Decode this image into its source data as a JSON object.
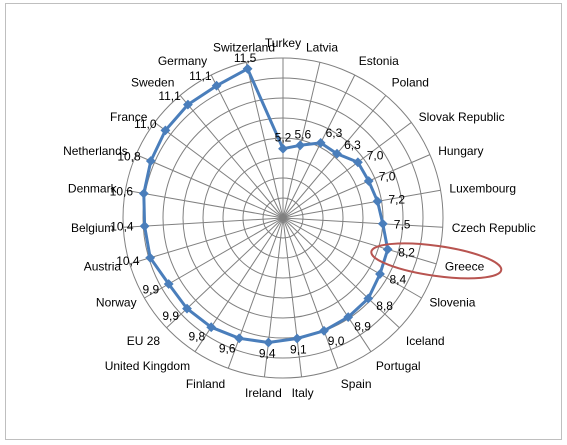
{
  "chart_data": {
    "type": "radar",
    "categories": [
      "Turkey",
      "Latvia",
      "Estonia",
      "Poland",
      "Slovak Republic",
      "Hungary",
      "Luxembourg",
      "Czech Republic",
      "Greece",
      "Slovenia",
      "Iceland",
      "Portugal",
      "Spain",
      "Italy",
      "Ireland",
      "Finland",
      "United Kingdom",
      "EU 28",
      "Norway",
      "Austria",
      "Belgium",
      "Denmark",
      "Netherlands",
      "France",
      "Sweden",
      "Germany",
      "Switzerland"
    ],
    "values": [
      5.2,
      5.6,
      6.3,
      6.3,
      7.0,
      7.0,
      7.2,
      7.5,
      8.2,
      8.4,
      8.8,
      8.9,
      9.0,
      9.1,
      9.4,
      9.6,
      9.8,
      9.9,
      9.9,
      10.4,
      10.4,
      10.6,
      10.8,
      11.0,
      11.1,
      11.1,
      11.5
    ],
    "value_labels": [
      "5,2",
      "5,6",
      "6,3",
      "6,3",
      "7,0",
      "7,0",
      "7,2",
      "7,5",
      "8,2",
      "8,4",
      "8,8",
      "8,9",
      "9,0",
      "9,1",
      "9,4",
      "9,6",
      "9,8",
      "9,9",
      "9,9",
      "10,4",
      "10,4",
      "10,6",
      "10,8",
      "11,0",
      "11,1",
      "11,1",
      "11,5"
    ],
    "rlim": [
      0,
      12
    ],
    "ring_step": 1.5,
    "grid": true,
    "highlight": "Greece",
    "colors": {
      "series": "#4a7ebb",
      "grid": "#808080",
      "highlight": "#b85450"
    }
  }
}
